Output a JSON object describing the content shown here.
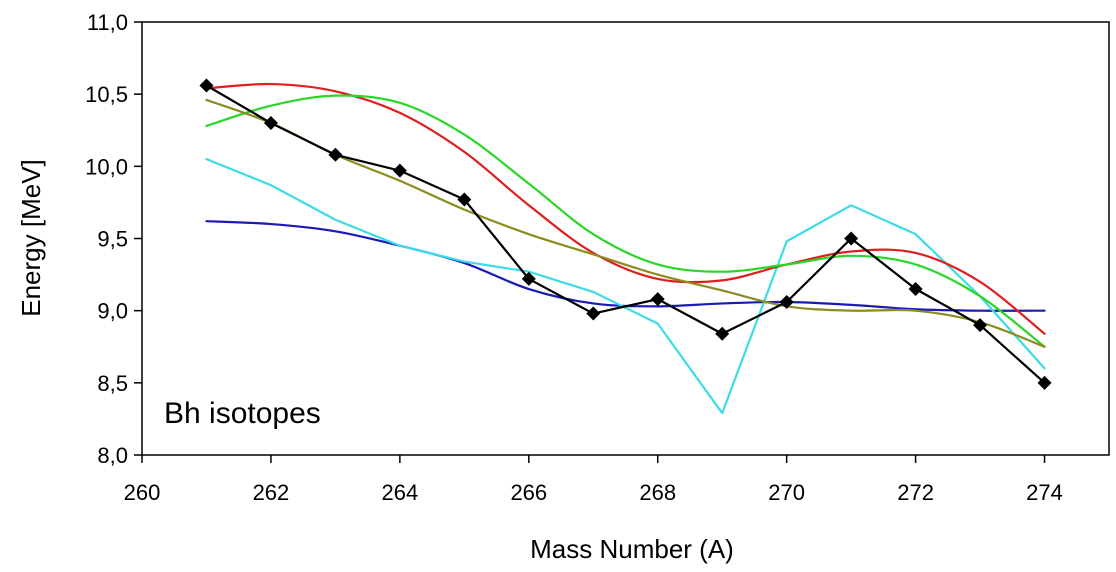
{
  "chart_data": {
    "type": "line",
    "title": "",
    "xlabel": "Mass Number (A)",
    "ylabel": "Energy [MeV]",
    "annotation": "Bh isotopes",
    "xlim": [
      260,
      275
    ],
    "ylim": [
      8.0,
      11.0
    ],
    "x_ticks": [
      260,
      262,
      264,
      266,
      268,
      270,
      272,
      274
    ],
    "x_tick_labels": [
      "260",
      "262",
      "264",
      "266",
      "268",
      "270",
      "272",
      "274"
    ],
    "y_ticks": [
      8.0,
      8.5,
      9.0,
      9.5,
      10.0,
      10.5,
      11.0
    ],
    "y_tick_labels": [
      "8,0",
      "8,5",
      "9,0",
      "9,5",
      "10,0",
      "10,5",
      "11,0"
    ],
    "grid": false,
    "legend": false,
    "x": [
      261,
      262,
      263,
      264,
      265,
      266,
      267,
      268,
      269,
      270,
      271,
      272,
      273,
      274
    ],
    "series": [
      {
        "color": "#1a1ab4",
        "marker": "none",
        "smooth": true,
        "values": [
          9.62,
          9.6,
          9.55,
          9.45,
          9.33,
          9.15,
          9.05,
          9.03,
          9.05,
          9.06,
          9.04,
          9.01,
          9.0,
          9.0
        ]
      },
      {
        "color": "#3cdce6",
        "marker": "none",
        "smooth": false,
        "values": [
          10.05,
          9.87,
          9.63,
          9.45,
          9.34,
          9.27,
          9.13,
          8.91,
          8.29,
          9.48,
          9.73,
          9.53,
          9.1,
          8.6
        ]
      },
      {
        "color": "#e01e1e",
        "marker": "none",
        "smooth": true,
        "values": [
          10.54,
          10.57,
          10.52,
          10.37,
          10.1,
          9.73,
          9.4,
          9.22,
          9.21,
          9.32,
          9.41,
          9.4,
          9.2,
          8.84
        ]
      },
      {
        "color": "#28d728",
        "marker": "none",
        "smooth": true,
        "values": [
          10.28,
          10.42,
          10.49,
          10.44,
          10.22,
          9.88,
          9.53,
          9.32,
          9.27,
          9.32,
          9.38,
          9.32,
          9.1,
          8.75
        ]
      },
      {
        "color": "#8c8c1e",
        "marker": "none",
        "smooth": true,
        "values": [
          10.46,
          10.3,
          10.08,
          9.9,
          9.7,
          9.53,
          9.39,
          9.25,
          9.14,
          9.03,
          9.0,
          9.0,
          8.92,
          8.75
        ]
      },
      {
        "color": "#000000",
        "marker": "diamond",
        "smooth": false,
        "values": [
          10.56,
          10.3,
          10.08,
          9.97,
          9.77,
          9.22,
          8.98,
          9.08,
          8.84,
          9.06,
          9.5,
          9.15,
          8.9,
          8.5
        ]
      }
    ]
  }
}
